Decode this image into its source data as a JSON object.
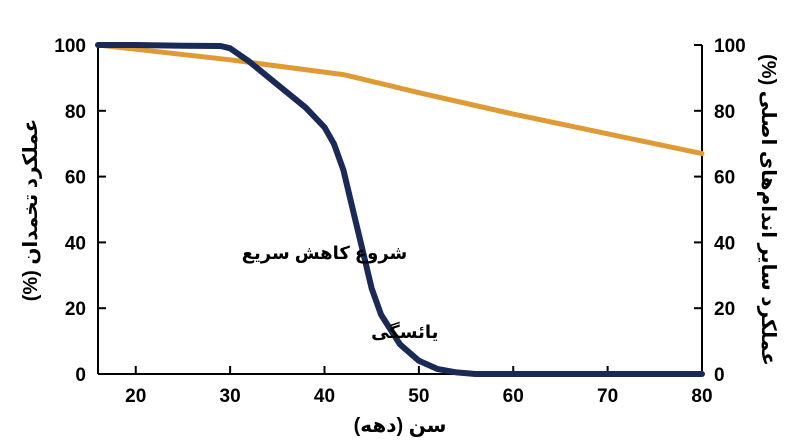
{
  "chart_data": {
    "type": "line",
    "title": "",
    "xlabel": "سن (دهه)",
    "ylabel_left": "عملکرد تخمدان (%)",
    "ylabel_right": "عملکرد سایر اندام‌های اصلی (%)",
    "xlim": [
      16,
      80
    ],
    "ylim": [
      0,
      100
    ],
    "x_ticks": [
      20,
      30,
      40,
      50,
      60,
      70,
      80
    ],
    "y_ticks_left": [
      0,
      20,
      40,
      60,
      80,
      100
    ],
    "y_ticks_right": [
      0,
      20,
      40,
      60,
      80,
      100
    ],
    "grid": false,
    "legend": "none",
    "series": [
      {
        "color": "#1a2a57",
        "axis": "left",
        "x": [
          16,
          20,
          25,
          29,
          30,
          32,
          35,
          38,
          40,
          41,
          42,
          43,
          44,
          45,
          46,
          48,
          50,
          52,
          54,
          56,
          60,
          70,
          80
        ],
        "y": [
          100,
          100,
          99.8,
          99.7,
          99,
          95,
          88,
          81,
          75,
          70,
          62,
          50,
          38,
          26,
          18,
          9,
          4,
          1.5,
          0.5,
          0,
          0,
          0,
          0
        ]
      },
      {
        "color": "#e09a35",
        "axis": "right",
        "x": [
          16,
          30,
          42,
          50,
          60,
          70,
          80
        ],
        "y": [
          100,
          95.5,
          91,
          85.5,
          79,
          73,
          67
        ]
      }
    ],
    "annotations": [
      {
        "text": "شروع کاهش سریع",
        "x": 40,
        "y": 34
      },
      {
        "text": "یائسگی",
        "x": 48.5,
        "y": 10
      }
    ]
  }
}
